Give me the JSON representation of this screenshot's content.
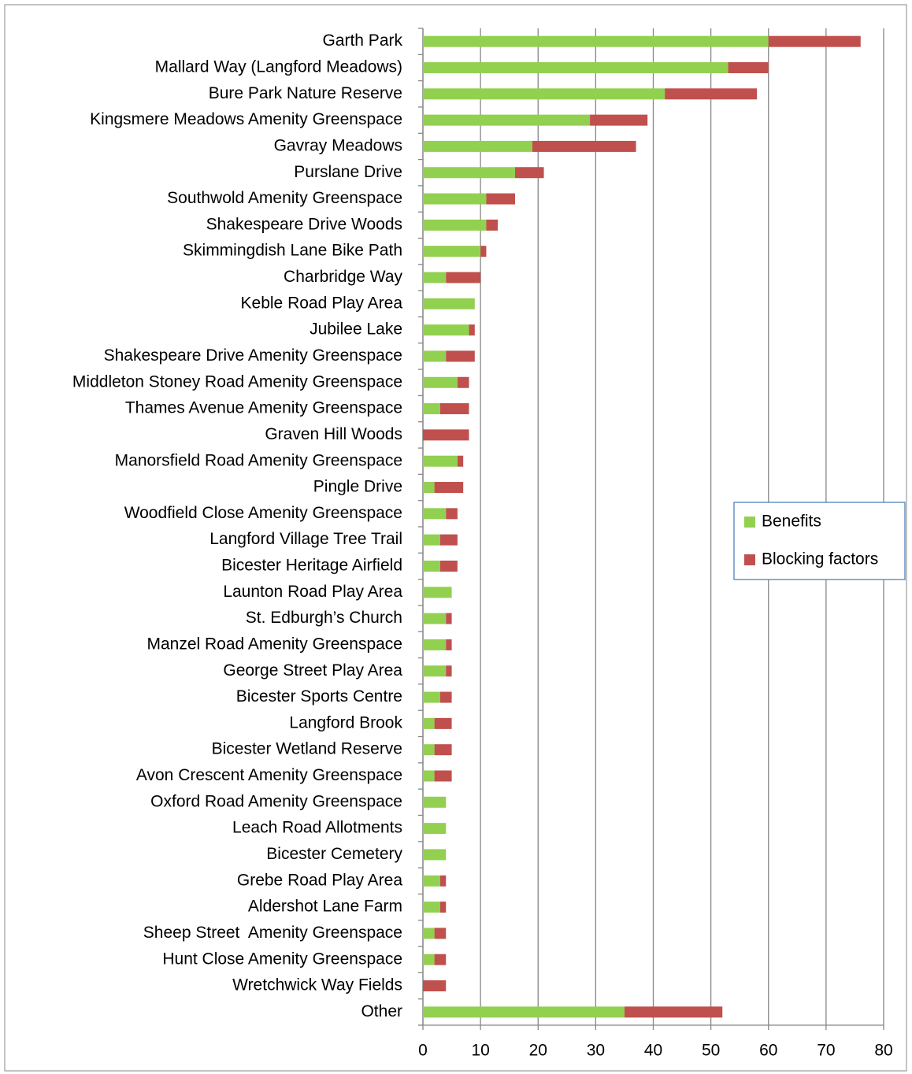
{
  "chart_data": {
    "type": "bar",
    "orientation": "horizontal",
    "stacked": true,
    "categories": [
      "Garth Park",
      "Mallard Way (Langford Meadows)",
      "Bure Park Nature Reserve",
      "Kingsmere Meadows Amenity Greenspace",
      "Gavray Meadows",
      "Purslane Drive",
      "Southwold Amenity Greenspace",
      "Shakespeare Drive Woods",
      "Skimmingdish Lane Bike Path",
      "Charbridge Way",
      "Keble Road Play Area",
      "Jubilee Lake",
      "Shakespeare Drive Amenity Greenspace",
      "Middleton Stoney Road Amenity Greenspace",
      "Thames Avenue Amenity Greenspace",
      "Graven Hill Woods",
      "Manorsfield Road Amenity Greenspace",
      "Pingle Drive",
      "Woodfield Close Amenity Greenspace",
      "Langford Village Tree Trail",
      "Bicester Heritage Airfield",
      "Launton Road Play Area",
      "St. Edburgh’s Church",
      "Manzel Road Amenity Greenspace",
      "George Street Play Area",
      "Bicester Sports Centre",
      "Langford Brook",
      "Bicester Wetland Reserve",
      "Avon Crescent Amenity Greenspace",
      "Oxford Road Amenity Greenspace",
      "Leach Road Allotments",
      "Bicester Cemetery",
      "Grebe Road Play Area",
      "Aldershot Lane Farm",
      "Sheep Street  Amenity Greenspace",
      "Hunt Close Amenity Greenspace",
      "Wretchwick Way Fields",
      "Other"
    ],
    "series": [
      {
        "name": "Benefits",
        "color": "#92d050",
        "values": [
          60,
          53,
          42,
          29,
          19,
          16,
          11,
          11,
          10,
          4,
          9,
          8,
          4,
          6,
          3,
          0,
          6,
          2,
          4,
          3,
          3,
          5,
          4,
          4,
          4,
          3,
          2,
          2,
          2,
          4,
          4,
          4,
          3,
          3,
          2,
          2,
          0,
          35
        ]
      },
      {
        "name": "Blocking factors",
        "color": "#c0504d",
        "values": [
          16,
          7,
          16,
          10,
          18,
          5,
          5,
          2,
          1,
          6,
          0,
          1,
          5,
          2,
          5,
          8,
          1,
          5,
          2,
          3,
          3,
          0,
          1,
          1,
          1,
          2,
          3,
          3,
          3,
          0,
          0,
          0,
          1,
          1,
          2,
          2,
          4,
          17
        ]
      }
    ],
    "xlim": [
      0,
      80
    ],
    "xticks": [
      0,
      10,
      20,
      30,
      40,
      50,
      60,
      70,
      80
    ],
    "grid": true,
    "legend": "right"
  }
}
